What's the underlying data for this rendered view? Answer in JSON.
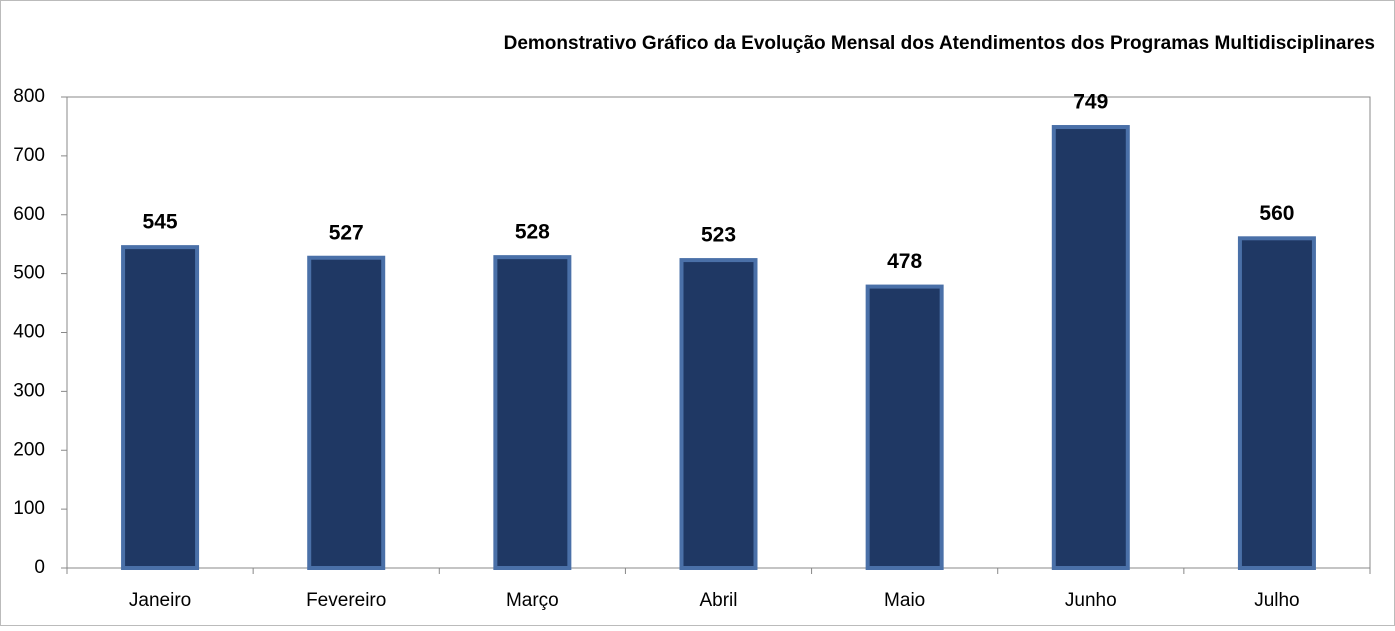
{
  "chart_data": {
    "type": "bar",
    "title": "Demonstrativo Gráfico da Evolução Mensal dos Atendimentos dos Programas Multidisciplinares",
    "categories": [
      "Janeiro",
      "Fevereiro",
      "Março",
      "Abril",
      "Maio",
      "Junho",
      "Julho"
    ],
    "values": [
      545,
      527,
      528,
      523,
      478,
      749,
      560
    ],
    "color": "#1f3864",
    "edge_color": "#4a70a8",
    "ylim": [
      0,
      800
    ],
    "yticks": [
      0,
      100,
      200,
      300,
      400,
      500,
      600,
      700,
      800
    ],
    "grid": false,
    "data_labels": true
  }
}
